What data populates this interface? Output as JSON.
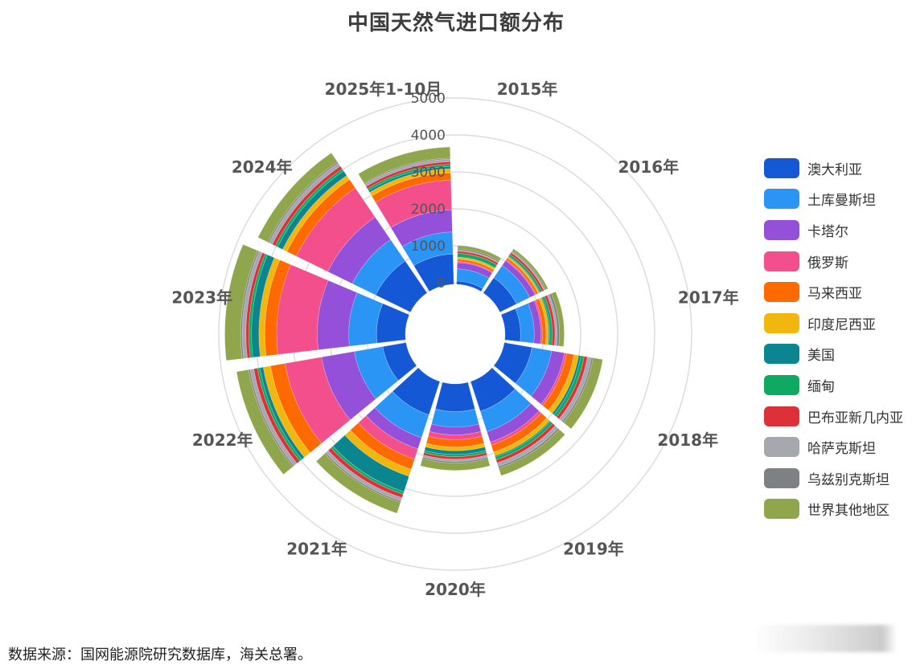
{
  "title": "中国天然气进口额分布",
  "source_note": "数据来源：国网能源院研究数据库，海关总署。",
  "chart_data": {
    "type": "bar",
    "subtype": "polar-stacked-bar",
    "title": "中国天然气进口额分布",
    "xlabel": "",
    "ylabel": "",
    "radial_axis": {
      "ticks": [
        0,
        1000,
        2000,
        3000,
        4000,
        5000
      ],
      "range": [
        0,
        5000
      ]
    },
    "grid": true,
    "legend_position": "right",
    "categories": [
      "2015年",
      "2016年",
      "2017年",
      "2018年",
      "2019年",
      "2020年",
      "2021年",
      "2022年",
      "2023年",
      "2024年",
      "2025年1-10月"
    ],
    "series": [
      {
        "name": "澳大利亚",
        "color": "#1558d6",
        "values": [
          90,
          500,
          420,
          760,
          850,
          750,
          950,
          640,
          780,
          1050,
          820
        ]
      },
      {
        "name": "土库曼斯坦",
        "color": "#2b95f5",
        "values": [
          330,
          400,
          370,
          540,
          580,
          420,
          650,
          780,
          750,
          700,
          600
        ]
      },
      {
        "name": "卡塔尔",
        "color": "#9450d8",
        "values": [
          170,
          160,
          180,
          350,
          300,
          210,
          320,
          900,
          850,
          740,
          600
        ]
      },
      {
        "name": "俄罗斯",
        "color": "#f24f8c",
        "values": [
          30,
          30,
          40,
          60,
          80,
          130,
          290,
          1000,
          1100,
          950,
          800
        ]
      },
      {
        "name": "马来西亚",
        "color": "#fe6a00",
        "values": [
          60,
          60,
          100,
          200,
          200,
          200,
          290,
          400,
          320,
          280,
          200
        ]
      },
      {
        "name": "印度尼西亚",
        "color": "#f1b70e",
        "values": [
          50,
          40,
          70,
          130,
          110,
          100,
          200,
          200,
          160,
          130,
          110
        ]
      },
      {
        "name": "美国",
        "color": "#0b858f",
        "values": [
          10,
          20,
          30,
          60,
          30,
          100,
          440,
          90,
          200,
          150,
          60
        ]
      },
      {
        "name": "缅甸",
        "color": "#0eaa62",
        "values": [
          100,
          60,
          70,
          90,
          80,
          60,
          70,
          70,
          70,
          70,
          60
        ]
      },
      {
        "name": "巴布亚新几内亚",
        "color": "#de3039",
        "values": [
          60,
          60,
          70,
          90,
          90,
          70,
          100,
          100,
          80,
          90,
          70
        ]
      },
      {
        "name": "哈萨克斯坦",
        "color": "#a6a8ad",
        "values": [
          20,
          20,
          60,
          110,
          100,
          60,
          90,
          100,
          100,
          100,
          70
        ]
      },
      {
        "name": "乌兹别克斯坦",
        "color": "#7f8084",
        "values": [
          40,
          30,
          60,
          45,
          50,
          40,
          40,
          40,
          40,
          40,
          30
        ]
      },
      {
        "name": "世界其他地区",
        "color": "#90a64c",
        "values": [
          90,
          70,
          130,
          265,
          210,
          200,
          310,
          330,
          430,
          290,
          300
        ]
      }
    ]
  },
  "legend": {
    "items": [
      {
        "label": "澳大利亚"
      },
      {
        "label": "土库曼斯坦"
      },
      {
        "label": "卡塔尔"
      },
      {
        "label": "俄罗斯"
      },
      {
        "label": "马来西亚"
      },
      {
        "label": "印度尼西亚"
      },
      {
        "label": "美国"
      },
      {
        "label": "缅甸"
      },
      {
        "label": "巴布亚新几内亚"
      },
      {
        "label": "哈萨克斯坦"
      },
      {
        "label": "乌兹别克斯坦"
      },
      {
        "label": "世界其他地区"
      }
    ]
  }
}
